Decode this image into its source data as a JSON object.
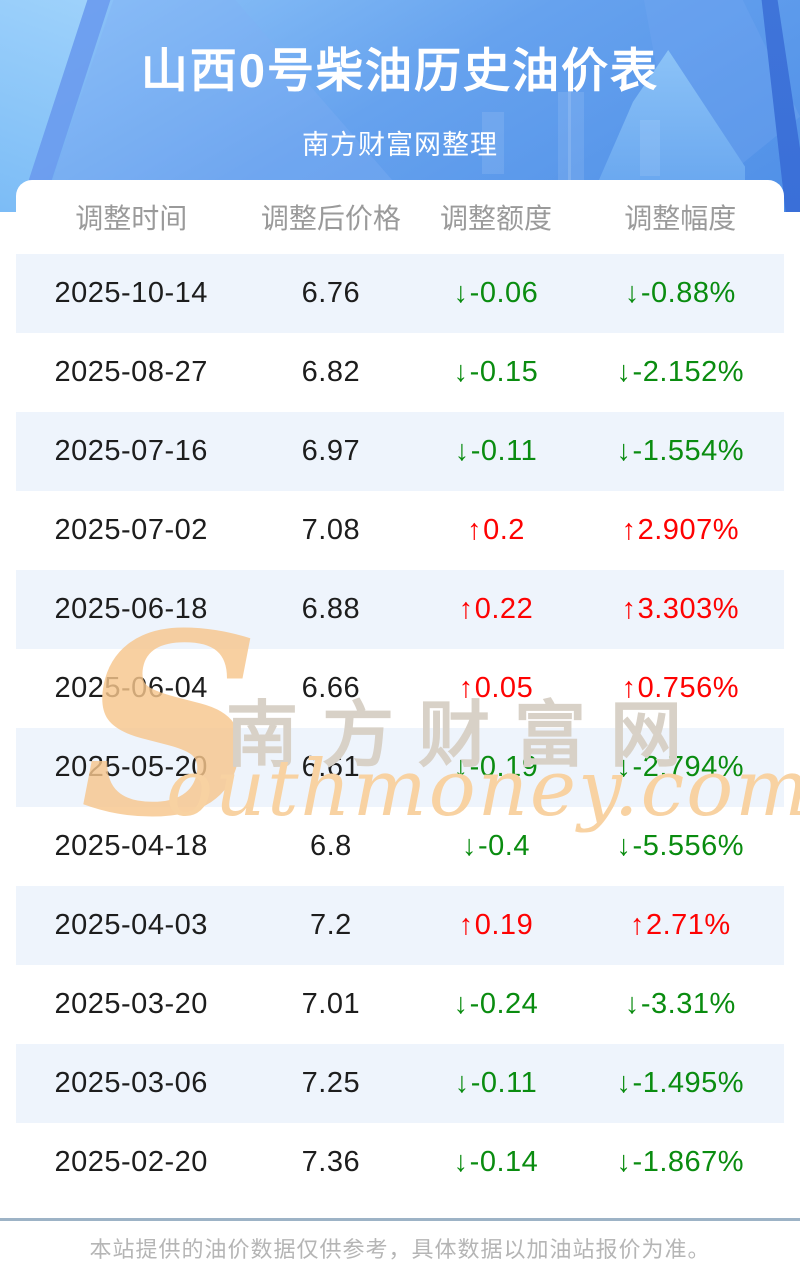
{
  "chart_data": {
    "type": "table",
    "title": "山西0号柴油历史油价表",
    "subtitle": "南方财富网整理",
    "columns": [
      "调整时间",
      "调整后价格",
      "调整额度",
      "调整幅度"
    ],
    "rows": [
      {
        "date": "2025-10-14",
        "price": "6.76",
        "change": "-0.06",
        "change_pct": "-0.88%",
        "direction": "down"
      },
      {
        "date": "2025-08-27",
        "price": "6.82",
        "change": "-0.15",
        "change_pct": "-2.152%",
        "direction": "down"
      },
      {
        "date": "2025-07-16",
        "price": "6.97",
        "change": "-0.11",
        "change_pct": "-1.554%",
        "direction": "down"
      },
      {
        "date": "2025-07-02",
        "price": "7.08",
        "change": "0.2",
        "change_pct": "2.907%",
        "direction": "up"
      },
      {
        "date": "2025-06-18",
        "price": "6.88",
        "change": "0.22",
        "change_pct": "3.303%",
        "direction": "up"
      },
      {
        "date": "2025-06-04",
        "price": "6.66",
        "change": "0.05",
        "change_pct": "0.756%",
        "direction": "up"
      },
      {
        "date": "2025-05-20",
        "price": "6.61",
        "change": "-0.19",
        "change_pct": "-2.794%",
        "direction": "down"
      },
      {
        "date": "2025-04-18",
        "price": "6.8",
        "change": "-0.4",
        "change_pct": "-5.556%",
        "direction": "down"
      },
      {
        "date": "2025-04-03",
        "price": "7.2",
        "change": "0.19",
        "change_pct": "2.71%",
        "direction": "up"
      },
      {
        "date": "2025-03-20",
        "price": "7.01",
        "change": "-0.24",
        "change_pct": "-3.31%",
        "direction": "down"
      },
      {
        "date": "2025-03-06",
        "price": "7.25",
        "change": "-0.11",
        "change_pct": "-1.495%",
        "direction": "down"
      },
      {
        "date": "2025-02-20",
        "price": "7.36",
        "change": "-0.14",
        "change_pct": "-1.867%",
        "direction": "down"
      }
    ]
  },
  "icons": {
    "up": "↑",
    "down": "↓"
  },
  "watermark": {
    "initial": "S",
    "cn": "南方财富网",
    "en": "outhmoney.com"
  },
  "footer": {
    "disclaimer": "本站提供的油价数据仅供参考，具体数据以加油站报价为准。"
  },
  "colors": {
    "up_red": "#fe0202",
    "down_green": "#0a8c10",
    "stripe_blue": "#eef4fc",
    "header_blue": "#5e9aeb",
    "divider_blue_gray": "#9db3c6",
    "header_text_gray": "#9a9a9a"
  }
}
